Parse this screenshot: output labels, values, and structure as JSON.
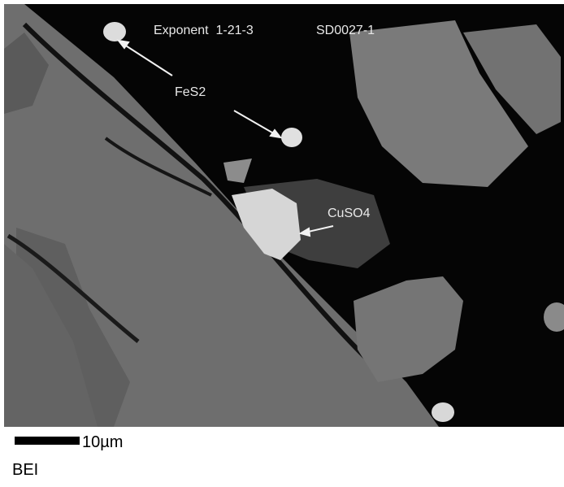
{
  "image": {
    "sample": "Exponent  1-21-3",
    "id": "SD0027-1",
    "annotations": [
      "FeS2",
      "CuSO4"
    ]
  },
  "scale_bar": {
    "label": "10µm"
  },
  "mode": "BEI"
}
